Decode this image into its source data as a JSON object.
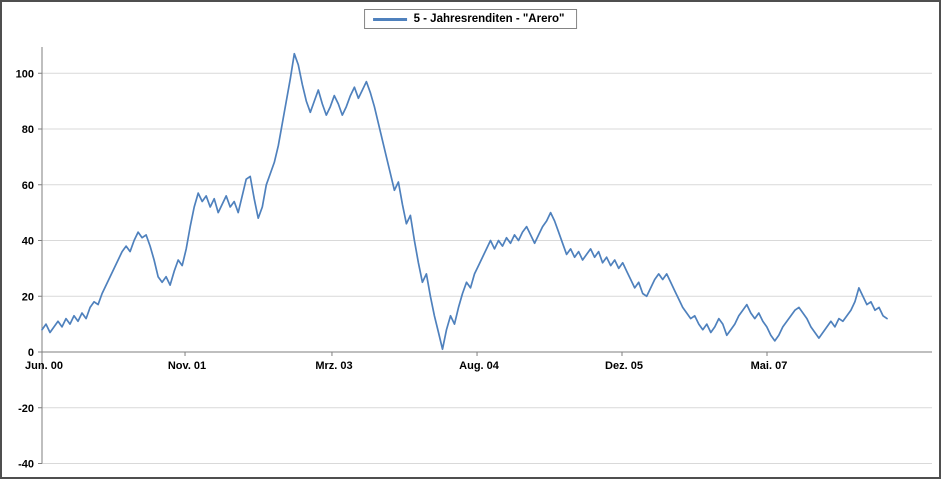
{
  "chart_data": {
    "type": "line",
    "title": "",
    "xlabel": "",
    "ylabel": "",
    "legend": "5 - Jahresrenditen - \"Arero\"",
    "legend_position": "top-center",
    "grid": true,
    "line_color": "#4F81BD",
    "gridline_color": "#d9d9d9",
    "axis_color": "#7f7f7f",
    "ylim": [
      -40,
      110
    ],
    "y_ticks": [
      -40,
      -20,
      0,
      20,
      40,
      60,
      80,
      100
    ],
    "x_ticks": [
      {
        "label": "Jun. 00",
        "pos": 0.0
      },
      {
        "label": "Nov. 01",
        "pos": 0.1607
      },
      {
        "label": "Mrz. 03",
        "pos": 0.3258
      },
      {
        "label": "Aug. 04",
        "pos": 0.4888
      },
      {
        "label": "Dez. 05",
        "pos": 0.6517
      },
      {
        "label": "Mai. 07",
        "pos": 0.8146
      }
    ],
    "series_extent": 0.9494,
    "values": [
      8,
      10,
      7,
      9,
      11,
      9,
      12,
      10,
      13,
      11,
      14,
      12,
      16,
      18,
      17,
      21,
      24,
      27,
      30,
      33,
      36,
      38,
      36,
      40,
      43,
      41,
      42,
      38,
      33,
      27,
      25,
      27,
      24,
      29,
      33,
      31,
      37,
      45,
      52,
      57,
      54,
      56,
      52,
      55,
      50,
      53,
      56,
      52,
      54,
      50,
      56,
      62,
      63,
      55,
      48,
      52,
      60,
      64,
      68,
      74,
      82,
      90,
      98,
      107,
      103,
      96,
      90,
      86,
      90,
      94,
      89,
      85,
      88,
      92,
      89,
      85,
      88,
      92,
      95,
      91,
      94,
      97,
      93,
      88,
      82,
      76,
      70,
      64,
      58,
      61,
      53,
      46,
      49,
      40,
      32,
      25,
      28,
      20,
      13,
      7,
      1,
      8,
      13,
      10,
      16,
      21,
      25,
      23,
      28,
      31,
      34,
      37,
      40,
      37,
      40,
      38,
      41,
      39,
      42,
      40,
      43,
      45,
      42,
      39,
      42,
      45,
      47,
      50,
      47,
      43,
      39,
      35,
      37,
      34,
      36,
      33,
      35,
      37,
      34,
      36,
      32,
      34,
      31,
      33,
      30,
      32,
      29,
      26,
      23,
      25,
      21,
      20,
      23,
      26,
      28,
      26,
      28,
      25,
      22,
      19,
      16,
      14,
      12,
      13,
      10,
      8,
      10,
      7,
      9,
      12,
      10,
      6,
      8,
      10,
      13,
      15,
      17,
      14,
      12,
      14,
      11,
      9,
      6,
      4,
      6,
      9,
      11,
      13,
      15,
      16,
      14,
      12,
      9,
      7,
      5,
      7,
      9,
      11,
      9,
      12,
      11,
      13,
      15,
      18,
      23,
      20,
      17,
      18,
      15,
      16,
      13,
      12
    ]
  }
}
